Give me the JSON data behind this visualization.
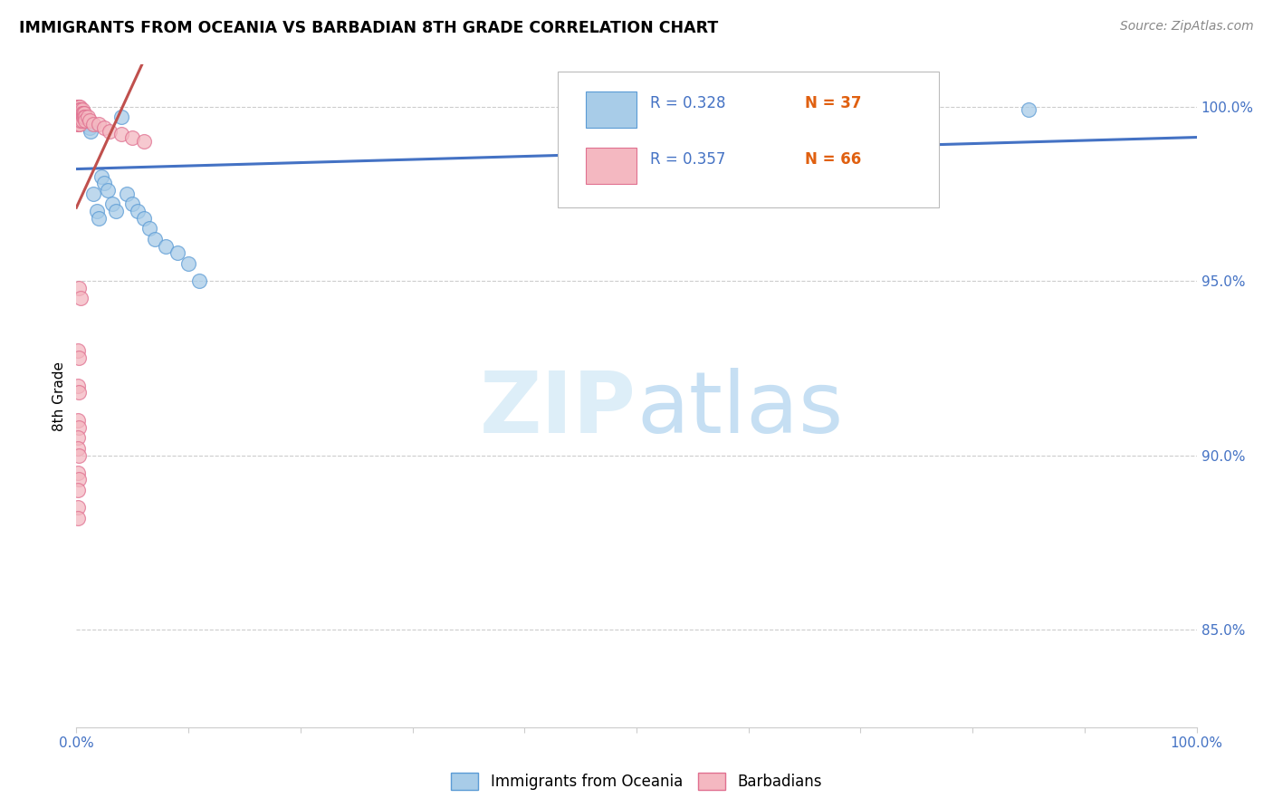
{
  "title": "IMMIGRANTS FROM OCEANIA VS BARBADIAN 8TH GRADE CORRELATION CHART",
  "source": "Source: ZipAtlas.com",
  "ylabel": "8th Grade",
  "ylabel_right_ticks": [
    "100.0%",
    "95.0%",
    "90.0%",
    "85.0%"
  ],
  "ylabel_right_vals": [
    1.0,
    0.95,
    0.9,
    0.85
  ],
  "xmin": 0.0,
  "xmax": 1.0,
  "ymin": 0.822,
  "ymax": 1.012,
  "legend_label1": "Immigrants from Oceania",
  "legend_label2": "Barbadians",
  "color_blue": "#a8cce8",
  "color_pink": "#f4b8c1",
  "color_blue_edge": "#5b9bd5",
  "color_pink_edge": "#e07090",
  "color_blue_line": "#4472c4",
  "color_pink_line": "#c0504d",
  "color_axis_text": "#4472c4",
  "watermark_color": "#ddeef8",
  "blue_points": [
    [
      0.001,
      0.998
    ],
    [
      0.002,
      0.997
    ],
    [
      0.002,
      0.996
    ],
    [
      0.003,
      0.998
    ],
    [
      0.003,
      0.997
    ],
    [
      0.004,
      0.998
    ],
    [
      0.004,
      0.997
    ],
    [
      0.005,
      0.997
    ],
    [
      0.005,
      0.996
    ],
    [
      0.006,
      0.997
    ],
    [
      0.007,
      0.996
    ],
    [
      0.008,
      0.997
    ],
    [
      0.009,
      0.996
    ],
    [
      0.01,
      0.995
    ],
    [
      0.012,
      0.994
    ],
    [
      0.013,
      0.993
    ],
    [
      0.015,
      0.975
    ],
    [
      0.018,
      0.97
    ],
    [
      0.02,
      0.968
    ],
    [
      0.022,
      0.98
    ],
    [
      0.025,
      0.978
    ],
    [
      0.028,
      0.976
    ],
    [
      0.032,
      0.972
    ],
    [
      0.035,
      0.97
    ],
    [
      0.04,
      0.997
    ],
    [
      0.045,
      0.975
    ],
    [
      0.05,
      0.972
    ],
    [
      0.055,
      0.97
    ],
    [
      0.06,
      0.968
    ],
    [
      0.065,
      0.965
    ],
    [
      0.07,
      0.962
    ],
    [
      0.08,
      0.96
    ],
    [
      0.09,
      0.958
    ],
    [
      0.1,
      0.955
    ],
    [
      0.11,
      0.95
    ],
    [
      0.75,
      0.999
    ],
    [
      0.85,
      0.999
    ]
  ],
  "pink_points": [
    [
      0.001,
      1.0
    ],
    [
      0.001,
      1.0
    ],
    [
      0.001,
      0.999
    ],
    [
      0.001,
      0.999
    ],
    [
      0.001,
      0.998
    ],
    [
      0.001,
      0.998
    ],
    [
      0.001,
      0.997
    ],
    [
      0.001,
      0.997
    ],
    [
      0.001,
      0.996
    ],
    [
      0.001,
      0.996
    ],
    [
      0.001,
      0.995
    ],
    [
      0.001,
      0.995
    ],
    [
      0.002,
      1.0
    ],
    [
      0.002,
      0.999
    ],
    [
      0.002,
      0.999
    ],
    [
      0.002,
      0.998
    ],
    [
      0.002,
      0.998
    ],
    [
      0.002,
      0.997
    ],
    [
      0.002,
      0.997
    ],
    [
      0.002,
      0.996
    ],
    [
      0.003,
      1.0
    ],
    [
      0.003,
      0.999
    ],
    [
      0.003,
      0.998
    ],
    [
      0.003,
      0.997
    ],
    [
      0.003,
      0.996
    ],
    [
      0.003,
      0.995
    ],
    [
      0.004,
      0.999
    ],
    [
      0.004,
      0.998
    ],
    [
      0.004,
      0.997
    ],
    [
      0.004,
      0.996
    ],
    [
      0.005,
      0.999
    ],
    [
      0.005,
      0.998
    ],
    [
      0.005,
      0.997
    ],
    [
      0.005,
      0.996
    ],
    [
      0.006,
      0.998
    ],
    [
      0.006,
      0.997
    ],
    [
      0.007,
      0.998
    ],
    [
      0.007,
      0.997
    ],
    [
      0.008,
      0.997
    ],
    [
      0.008,
      0.996
    ],
    [
      0.01,
      0.997
    ],
    [
      0.012,
      0.996
    ],
    [
      0.015,
      0.995
    ],
    [
      0.02,
      0.995
    ],
    [
      0.025,
      0.994
    ],
    [
      0.03,
      0.993
    ],
    [
      0.04,
      0.992
    ],
    [
      0.05,
      0.991
    ],
    [
      0.06,
      0.99
    ],
    [
      0.002,
      0.948
    ],
    [
      0.004,
      0.945
    ],
    [
      0.001,
      0.93
    ],
    [
      0.002,
      0.928
    ],
    [
      0.001,
      0.92
    ],
    [
      0.002,
      0.918
    ],
    [
      0.001,
      0.91
    ],
    [
      0.002,
      0.908
    ],
    [
      0.001,
      0.905
    ],
    [
      0.001,
      0.902
    ],
    [
      0.002,
      0.9
    ],
    [
      0.001,
      0.895
    ],
    [
      0.002,
      0.893
    ],
    [
      0.001,
      0.89
    ],
    [
      0.001,
      0.885
    ],
    [
      0.001,
      0.882
    ]
  ]
}
